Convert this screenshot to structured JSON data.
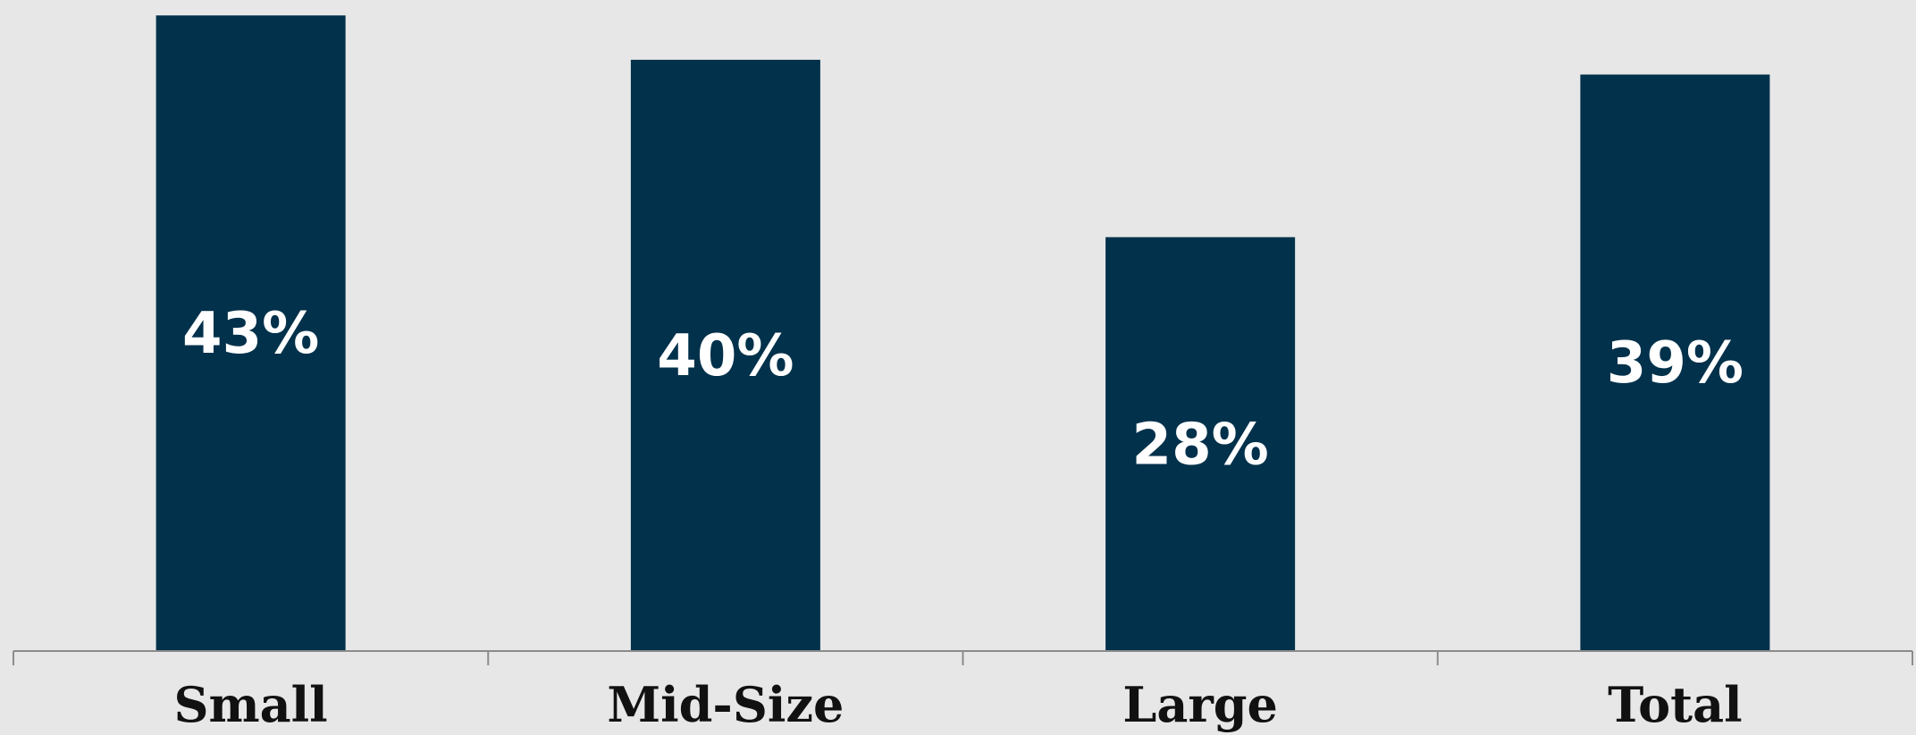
{
  "chart_data": {
    "type": "bar",
    "categories": [
      "Small",
      "Mid-Size",
      "Large",
      "Total"
    ],
    "values": [
      43,
      40,
      28,
      39
    ],
    "value_labels": [
      "43%",
      "40%",
      "28%",
      "39%"
    ],
    "title": "",
    "xlabel": "",
    "ylabel": "",
    "ylim": [
      0,
      43.5
    ],
    "grid": false,
    "legend": "none",
    "colors": {
      "bar": "#02314b",
      "background": "#e7e7e7",
      "axis": "#8c8c8c",
      "bar_label": "#ffffff",
      "category_label": "#111111"
    }
  }
}
